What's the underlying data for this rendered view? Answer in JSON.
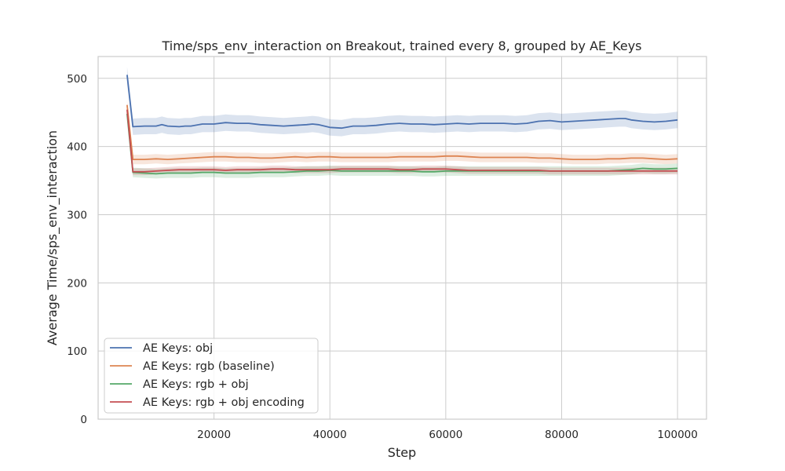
{
  "chart_data": {
    "type": "line",
    "title": "Time/sps_env_interaction on Breakout, trained every 8, grouped by AE_Keys",
    "xlabel": "Step",
    "ylabel": "Average Time/sps_env_interaction",
    "xlim": [
      0,
      105000
    ],
    "ylim": [
      0,
      532
    ],
    "xticks": [
      20000,
      40000,
      60000,
      80000,
      100000
    ],
    "xtick_labels": [
      "20000",
      "40000",
      "60000",
      "80000",
      "100000"
    ],
    "yticks": [
      0,
      100,
      200,
      300,
      400,
      500
    ],
    "ytick_labels": [
      "0",
      "100",
      "200",
      "300",
      "400",
      "500"
    ],
    "grid": true,
    "legend_position": "bottom-left",
    "series": [
      {
        "name": "AE Keys: obj",
        "color": "#4c72b0",
        "x": [
          5000,
          6000,
          8000,
          10000,
          11000,
          12000,
          14000,
          15000,
          16000,
          18000,
          20000,
          22000,
          24000,
          26000,
          28000,
          30000,
          32000,
          34000,
          36000,
          37000,
          38000,
          40000,
          42000,
          44000,
          46000,
          48000,
          50000,
          52000,
          54000,
          56000,
          58000,
          60000,
          62000,
          64000,
          66000,
          68000,
          70000,
          72000,
          74000,
          76000,
          78000,
          80000,
          82000,
          84000,
          86000,
          88000,
          90000,
          91000,
          92000,
          94000,
          96000,
          98000,
          100000
        ],
        "y": [
          505,
          429,
          430,
          430,
          432,
          430,
          429,
          430,
          430,
          433,
          433,
          435,
          434,
          434,
          432,
          431,
          430,
          431,
          432,
          433,
          432,
          428,
          427,
          430,
          430,
          431,
          433,
          434,
          433,
          433,
          432,
          433,
          434,
          433,
          434,
          434,
          434,
          433,
          434,
          437,
          438,
          436,
          437,
          438,
          439,
          440,
          441,
          441,
          439,
          437,
          436,
          437,
          439
        ],
        "band": 12
      },
      {
        "name": "AE Keys: rgb (baseline)",
        "color": "#dd8452",
        "x": [
          5000,
          6000,
          8000,
          10000,
          12000,
          14000,
          16000,
          18000,
          20000,
          22000,
          24000,
          26000,
          28000,
          30000,
          32000,
          34000,
          36000,
          38000,
          40000,
          42000,
          44000,
          46000,
          48000,
          50000,
          52000,
          54000,
          56000,
          58000,
          60000,
          62000,
          64000,
          66000,
          68000,
          70000,
          72000,
          74000,
          76000,
          78000,
          80000,
          82000,
          84000,
          86000,
          88000,
          90000,
          92000,
          94000,
          96000,
          98000,
          100000
        ],
        "y": [
          461,
          381,
          381,
          382,
          381,
          382,
          383,
          384,
          385,
          385,
          384,
          384,
          383,
          383,
          384,
          385,
          384,
          385,
          385,
          384,
          384,
          384,
          384,
          384,
          385,
          385,
          385,
          385,
          386,
          386,
          385,
          384,
          384,
          384,
          384,
          384,
          383,
          383,
          382,
          381,
          381,
          381,
          382,
          382,
          383,
          383,
          382,
          381,
          382
        ],
        "band": 7
      },
      {
        "name": "AE Keys: rgb + obj",
        "color": "#55a868",
        "x": [
          5000,
          6000,
          8000,
          10000,
          12000,
          14000,
          16000,
          18000,
          20000,
          22000,
          24000,
          26000,
          28000,
          30000,
          32000,
          34000,
          36000,
          38000,
          40000,
          42000,
          44000,
          46000,
          48000,
          50000,
          52000,
          54000,
          56000,
          58000,
          60000,
          62000,
          64000,
          66000,
          68000,
          70000,
          72000,
          74000,
          76000,
          78000,
          80000,
          82000,
          84000,
          86000,
          88000,
          90000,
          92000,
          94000,
          96000,
          98000,
          100000
        ],
        "y": [
          448,
          362,
          361,
          360,
          361,
          361,
          361,
          362,
          362,
          361,
          361,
          361,
          362,
          362,
          362,
          363,
          364,
          364,
          365,
          364,
          364,
          364,
          364,
          364,
          364,
          364,
          363,
          363,
          364,
          364,
          364,
          364,
          364,
          364,
          364,
          364,
          364,
          364,
          364,
          364,
          364,
          364,
          364,
          365,
          366,
          368,
          367,
          367,
          368
        ],
        "band": 7
      },
      {
        "name": "AE Keys: rgb + obj encoding",
        "color": "#c44e52",
        "x": [
          5000,
          6000,
          8000,
          10000,
          12000,
          14000,
          16000,
          18000,
          20000,
          22000,
          24000,
          26000,
          28000,
          30000,
          32000,
          34000,
          36000,
          38000,
          40000,
          42000,
          44000,
          46000,
          48000,
          50000,
          52000,
          54000,
          56000,
          58000,
          60000,
          62000,
          64000,
          66000,
          68000,
          70000,
          72000,
          74000,
          76000,
          78000,
          80000,
          82000,
          84000,
          86000,
          88000,
          90000,
          92000,
          94000,
          96000,
          98000,
          100000
        ],
        "y": [
          454,
          363,
          363,
          364,
          365,
          366,
          366,
          366,
          366,
          365,
          366,
          366,
          366,
          367,
          367,
          366,
          366,
          366,
          366,
          367,
          367,
          367,
          367,
          367,
          366,
          366,
          367,
          367,
          367,
          366,
          365,
          365,
          365,
          365,
          365,
          365,
          365,
          364,
          364,
          364,
          364,
          364,
          364,
          364,
          364,
          364,
          364,
          364,
          364
        ],
        "band": 5
      }
    ]
  }
}
